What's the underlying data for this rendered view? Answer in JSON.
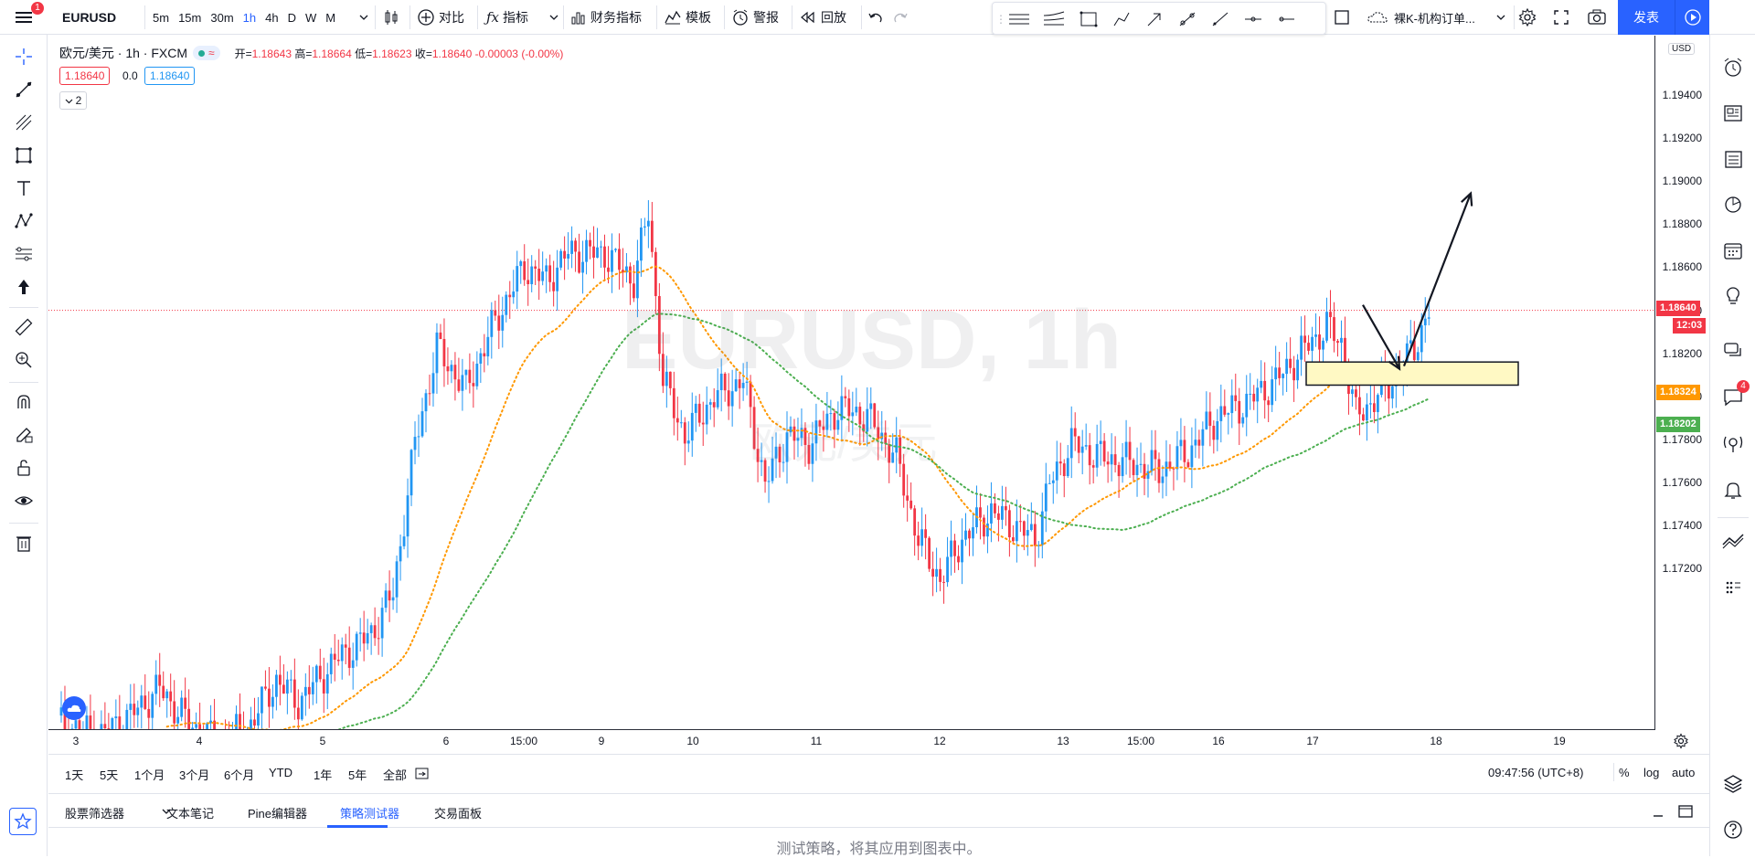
{
  "topbar": {
    "menu_badge": "1",
    "symbol": "EURUSD",
    "intervals": [
      "5m",
      "15m",
      "30m",
      "1h",
      "4h",
      "D",
      "W",
      "M"
    ],
    "active_interval": "1h",
    "compare_label": "对比",
    "indicators_label": "指标",
    "financials_label": "财务指标",
    "templates_label": "模板",
    "alert_label": "警报",
    "replay_label": "回放",
    "layout_name": "裸K-机构订单...",
    "publish_label": "发表"
  },
  "legend": {
    "title": "欧元/美元 · 1h · FXCM",
    "open_label": "开=",
    "open": "1.18643",
    "high_label": "高=",
    "high": "1.18664",
    "low_label": "低=",
    "low": "1.18623",
    "close_label": "收=",
    "close": "1.18640",
    "change": "-0.00003 (-0.00%)",
    "bid": "1.18640",
    "spread": "0.0",
    "ask": "1.18640",
    "collapse_count": "2"
  },
  "watermark": {
    "main": "EURUSD, 1h",
    "sub": "欧元/美元"
  },
  "price_scale": {
    "currency": "USD",
    "labels": [
      "1.19400",
      "1.19200",
      "1.19000",
      "1.18800",
      "1.18600",
      "1.18400",
      "1.18200",
      "1.18000",
      "1.17800",
      "1.17600",
      "1.17400",
      "1.17200"
    ],
    "current_price": "1.18640",
    "countdown": "12:03",
    "orange_ma": "1.18324",
    "green_ma": "1.18202"
  },
  "time_axis": {
    "labels": [
      "3",
      "4",
      "5",
      "6",
      "15:00",
      "9",
      "10",
      "11",
      "12",
      "13",
      "15:00",
      "16",
      "17",
      "18",
      "19"
    ]
  },
  "range_bar": {
    "ranges": [
      "1天",
      "5天",
      "1个月",
      "3个月",
      "6个月",
      "YTD",
      "1年",
      "5年",
      "全部"
    ],
    "clock": "09:47:56 (UTC+8)",
    "percent": "%",
    "log": "log",
    "auto": "auto"
  },
  "bottom_tabs": {
    "tabs": [
      "股票筛选器",
      "文本笔记",
      "Pine编辑器",
      "策略测试器",
      "交易面板"
    ],
    "active": "策略测试器",
    "message": "测试策略，将其应用到图表中。"
  },
  "right_toolbar": {
    "chat_badge": "4"
  },
  "colors": {
    "up": "#2196f3",
    "down": "#f23645",
    "orange_ma": "#ff9800",
    "green_ma": "#4caf50",
    "accent": "#2962ff"
  },
  "chart_data": {
    "type": "candlestick",
    "ylim": [
      1.171,
      1.1965
    ],
    "current_price": 1.1864,
    "orange_ma_last": 1.18324,
    "green_ma_last": 1.18202,
    "x": [
      "3",
      "4",
      "5",
      "6",
      "15:00",
      "9",
      "10",
      "11",
      "12",
      "13",
      "15:00",
      "16",
      "17",
      "18",
      "19"
    ]
  }
}
